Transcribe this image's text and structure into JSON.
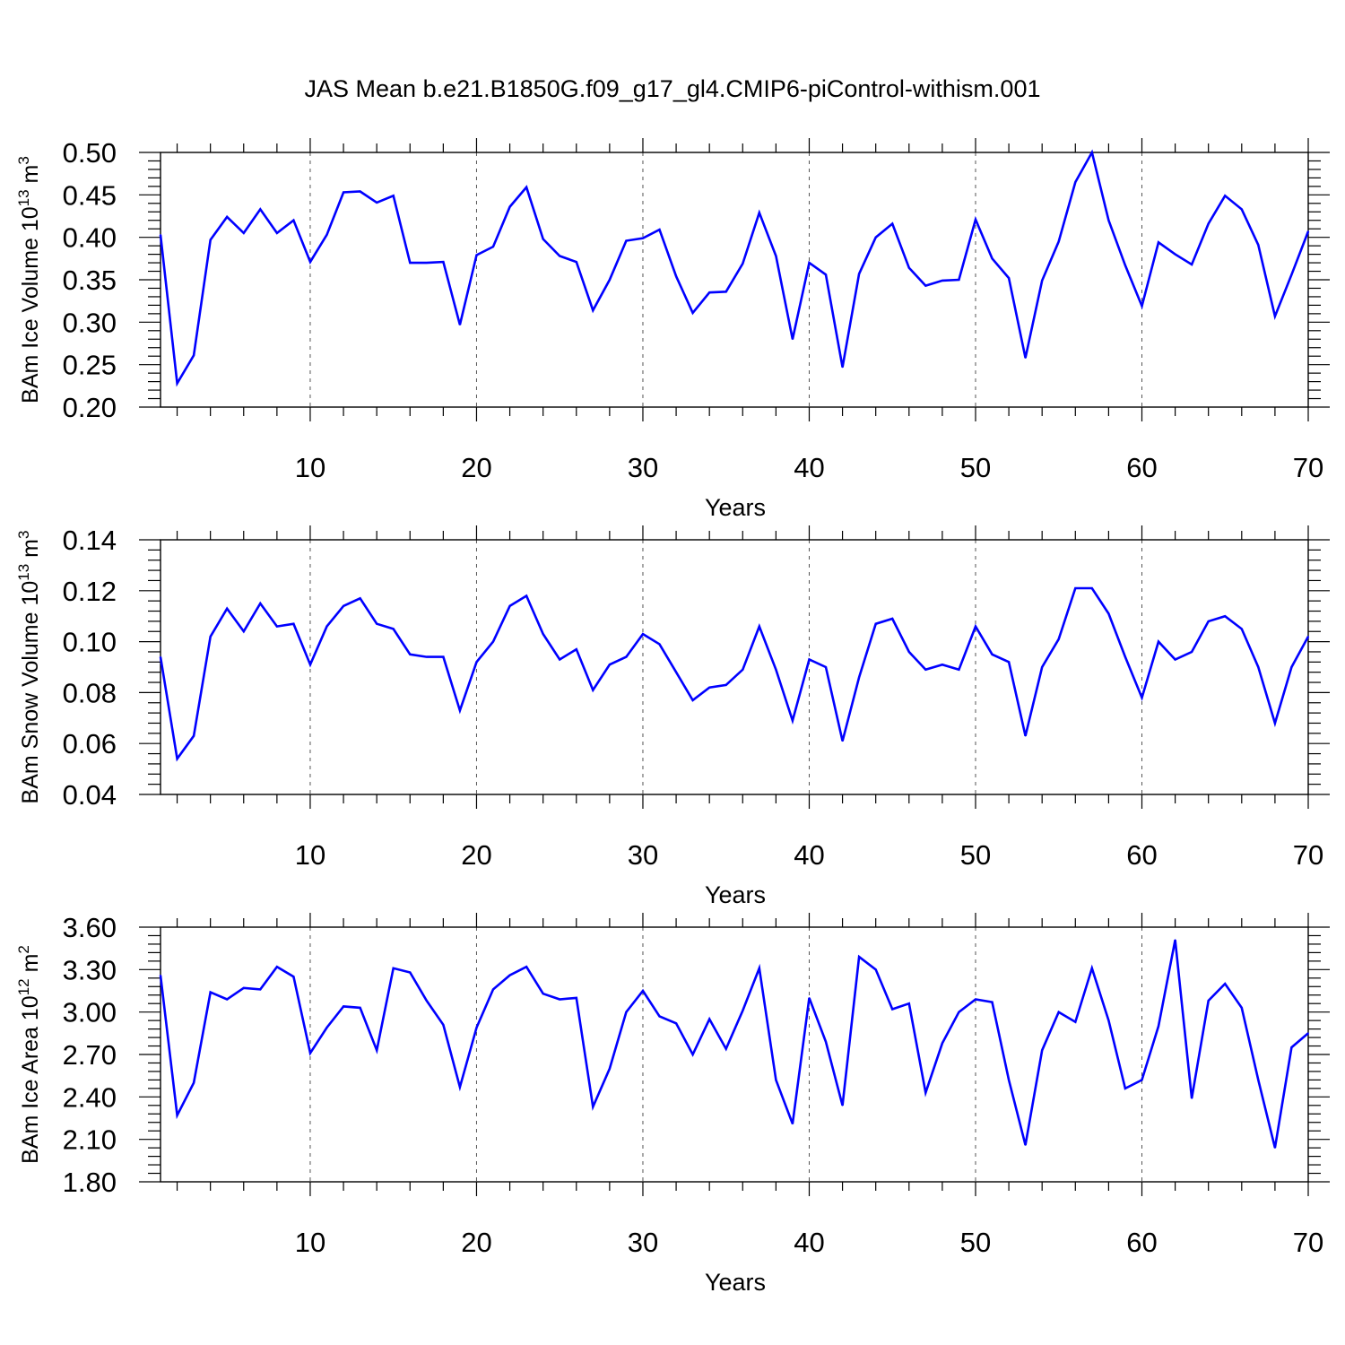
{
  "page": {
    "title": "JAS Mean b.e21.B1850G.f09_g17_gl4.CMIP6-piControl-withism.001"
  },
  "colors": {
    "line": "#0000ff",
    "axis": "#000000",
    "grid": "#555555"
  },
  "chart_data": [
    {
      "type": "line",
      "ylabel_main": "BAm Ice Volume 10",
      "ylabel_exp1": "13",
      "ylabel_mid": " m",
      "ylabel_exp2": "3",
      "xlabel": "Years",
      "xlim": [
        1,
        70
      ],
      "ylim": [
        0.2,
        0.5
      ],
      "xticks": [
        10,
        20,
        30,
        40,
        50,
        60,
        70
      ],
      "xtick_labels": [
        "10",
        "20",
        "30",
        "40",
        "50",
        "60",
        "70"
      ],
      "yticks": [
        0.2,
        0.25,
        0.3,
        0.35,
        0.4,
        0.45,
        0.5
      ],
      "ytick_labels": [
        "0.20",
        "0.25",
        "0.30",
        "0.35",
        "0.40",
        "0.45",
        "0.50"
      ],
      "grid_x": true,
      "series": [
        {
          "name": "BAm Ice Volume",
          "values": [
            0.403,
            0.228,
            0.261,
            0.397,
            0.424,
            0.405,
            0.433,
            0.405,
            0.42,
            0.371,
            0.403,
            0.453,
            0.454,
            0.441,
            0.449,
            0.37,
            0.37,
            0.371,
            0.297,
            0.379,
            0.389,
            0.436,
            0.459,
            0.398,
            0.378,
            0.371,
            0.314,
            0.35,
            0.396,
            0.399,
            0.409,
            0.354,
            0.311,
            0.335,
            0.336,
            0.369,
            0.429,
            0.378,
            0.28,
            0.37,
            0.356,
            0.247,
            0.357,
            0.4,
            0.416,
            0.364,
            0.343,
            0.349,
            0.35,
            0.421,
            0.375,
            0.352,
            0.258,
            0.349,
            0.395,
            0.465,
            0.5,
            0.42,
            0.367,
            0.319,
            0.394,
            0.38,
            0.368,
            0.416,
            0.449,
            0.433,
            0.391,
            0.307,
            0.356,
            0.407
          ]
        }
      ]
    },
    {
      "type": "line",
      "ylabel_main": "BAm Snow Volume 10",
      "ylabel_exp1": "13",
      "ylabel_mid": " m",
      "ylabel_exp2": "3",
      "xlabel": "Years",
      "xlim": [
        1,
        70
      ],
      "ylim": [
        0.04,
        0.14
      ],
      "xticks": [
        10,
        20,
        30,
        40,
        50,
        60,
        70
      ],
      "xtick_labels": [
        "10",
        "20",
        "30",
        "40",
        "50",
        "60",
        "70"
      ],
      "yticks": [
        0.04,
        0.06,
        0.08,
        0.1,
        0.12,
        0.14
      ],
      "ytick_labels": [
        "0.04",
        "0.06",
        "0.08",
        "0.10",
        "0.12",
        "0.14"
      ],
      "grid_x": true,
      "series": [
        {
          "name": "BAm Snow Volume",
          "values": [
            0.094,
            0.054,
            0.063,
            0.102,
            0.113,
            0.104,
            0.115,
            0.106,
            0.107,
            0.091,
            0.106,
            0.114,
            0.117,
            0.107,
            0.105,
            0.095,
            0.094,
            0.094,
            0.073,
            0.092,
            0.1,
            0.114,
            0.118,
            0.103,
            0.093,
            0.097,
            0.081,
            0.091,
            0.094,
            0.103,
            0.099,
            0.088,
            0.077,
            0.082,
            0.083,
            0.089,
            0.106,
            0.089,
            0.069,
            0.093,
            0.09,
            0.061,
            0.086,
            0.107,
            0.109,
            0.096,
            0.089,
            0.091,
            0.089,
            0.106,
            0.095,
            0.092,
            0.063,
            0.09,
            0.101,
            0.121,
            0.121,
            0.111,
            0.094,
            0.078,
            0.1,
            0.093,
            0.096,
            0.108,
            0.11,
            0.105,
            0.09,
            0.068,
            0.09,
            0.102
          ]
        }
      ]
    },
    {
      "type": "line",
      "ylabel_main": "BAm Ice Area 10",
      "ylabel_exp1": "12",
      "ylabel_mid": " m",
      "ylabel_exp2": "2",
      "xlabel": "Years",
      "xlim": [
        1,
        70
      ],
      "ylim": [
        1.8,
        3.6
      ],
      "xticks": [
        10,
        20,
        30,
        40,
        50,
        60,
        70
      ],
      "xtick_labels": [
        "10",
        "20",
        "30",
        "40",
        "50",
        "60",
        "70"
      ],
      "yticks": [
        1.8,
        2.1,
        2.4,
        2.7,
        3.0,
        3.3,
        3.6
      ],
      "ytick_labels": [
        "1.80",
        "2.10",
        "2.40",
        "2.70",
        "3.00",
        "3.30",
        "3.60"
      ],
      "grid_x": true,
      "series": [
        {
          "name": "BAm Ice Area",
          "values": [
            3.26,
            2.27,
            2.5,
            3.14,
            3.09,
            3.17,
            3.16,
            3.32,
            3.25,
            2.71,
            2.89,
            3.04,
            3.03,
            2.73,
            3.31,
            3.28,
            3.08,
            2.91,
            2.47,
            2.89,
            3.16,
            3.26,
            3.32,
            3.13,
            3.09,
            3.1,
            2.33,
            2.6,
            3.0,
            3.15,
            2.97,
            2.92,
            2.7,
            2.95,
            2.74,
            3.01,
            3.31,
            2.52,
            2.21,
            3.1,
            2.79,
            2.34,
            3.39,
            3.3,
            3.02,
            3.06,
            2.43,
            2.78,
            3.0,
            3.09,
            3.07,
            2.52,
            2.06,
            2.73,
            3.0,
            2.93,
            3.31,
            2.94,
            2.46,
            2.52,
            2.9,
            3.51,
            2.39,
            3.08,
            3.2,
            3.03,
            2.52,
            2.04,
            2.75,
            2.85
          ]
        }
      ]
    }
  ]
}
